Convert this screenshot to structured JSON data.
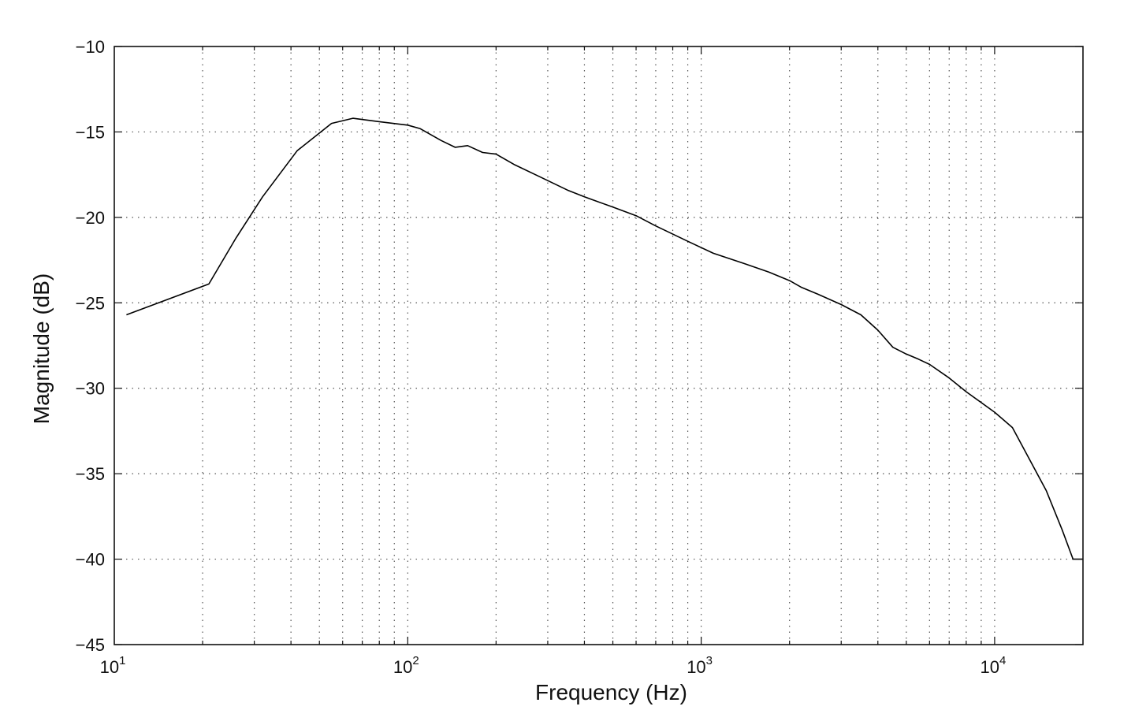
{
  "chart_data": {
    "type": "line",
    "title": "",
    "xlabel": "Frequency (Hz)",
    "ylabel": "Magnitude (dB)",
    "xscale": "log",
    "xlim": [
      10,
      20000
    ],
    "ylim": [
      -45,
      -10
    ],
    "grid": true,
    "legend": "none",
    "line_color": "#000000",
    "x_ticks": [
      {
        "base": "10",
        "exp": "1"
      },
      {
        "base": "10",
        "exp": "2"
      },
      {
        "base": "10",
        "exp": "3"
      },
      {
        "base": "10",
        "exp": "4"
      }
    ],
    "y_ticks": [
      "−10",
      "−15",
      "−20",
      "−25",
      "−30",
      "−35",
      "−40",
      "−45"
    ],
    "series": [
      {
        "x": [
          11,
          21,
          26,
          32,
          42,
          55,
          65,
          80,
          100,
          110,
          130,
          145,
          160,
          180,
          200,
          230,
          280,
          350,
          400,
          500,
          600,
          700,
          900,
          1100,
          1400,
          1700,
          2000,
          2200,
          2500,
          3000,
          3500,
          4000,
          4500,
          5000,
          5500,
          6000,
          7000,
          8000,
          10000,
          11500,
          13000,
          15000,
          17000,
          18500,
          20000
        ],
        "y": [
          -25.7,
          -23.9,
          -21.2,
          -18.8,
          -16.1,
          -14.5,
          -14.2,
          -14.4,
          -14.6,
          -14.8,
          -15.5,
          -15.9,
          -15.8,
          -16.2,
          -16.3,
          -16.9,
          -17.6,
          -18.4,
          -18.8,
          -19.4,
          -19.9,
          -20.5,
          -21.4,
          -22.1,
          -22.7,
          -23.2,
          -23.7,
          -24.1,
          -24.5,
          -25.1,
          -25.7,
          -26.6,
          -27.6,
          -28.0,
          -28.3,
          -28.6,
          -29.4,
          -30.2,
          -31.4,
          -32.3,
          -34.0,
          -36.0,
          -38.3,
          -40.0,
          -40.0
        ]
      }
    ]
  }
}
